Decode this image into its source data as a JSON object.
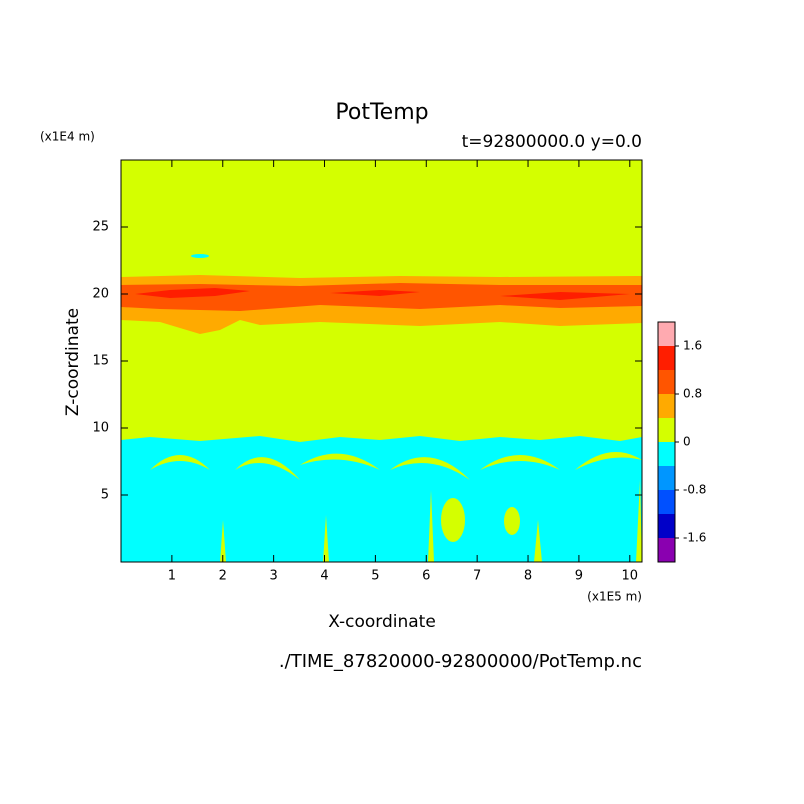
{
  "chart_data": {
    "type": "contour",
    "title": "PotTemp",
    "subtitle": "t=92800000.0 y=0.0",
    "x_label": "X-coordinate",
    "y_label": "Z-coordinate",
    "x_unit": "(x1E5 m)",
    "y_unit": "(x1E4 m)",
    "source": "./TIME_87820000-92800000/PotTemp.nc",
    "xlim": [
      0,
      10.24
    ],
    "xticks": [
      1,
      2,
      3,
      4,
      5,
      6,
      7,
      8,
      9,
      10
    ],
    "ylim": [
      0,
      30
    ],
    "yticks": [
      5,
      10,
      15,
      20,
      25
    ],
    "colorbar": {
      "clim": [
        -2,
        2
      ],
      "ticks": [
        -1.6,
        -0.8,
        0,
        0.8,
        1.6
      ],
      "colors": [
        "#8a00b0",
        "#0000c8",
        "#0050ff",
        "#0096ff",
        "#00ffff",
        "#d4ff00",
        "#ffaa00",
        "#ff5500",
        "#ff1e00",
        "#ffaab0"
      ]
    }
  }
}
